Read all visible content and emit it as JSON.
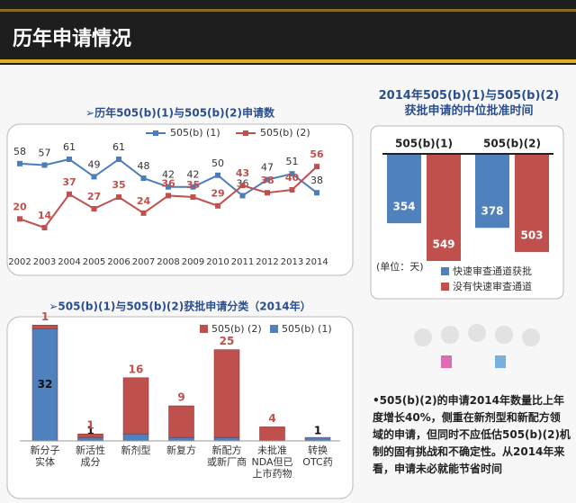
{
  "header": {
    "title": "历年申请情况"
  },
  "chart_data": [
    {
      "type": "line",
      "title": "➢历年505(b)(1)与505(b)(2)申请数",
      "categories": [
        "2002",
        "2003",
        "2004",
        "2005",
        "2006",
        "2007",
        "2008",
        "2009",
        "2010",
        "2011",
        "2012",
        "2013",
        "2014"
      ],
      "series": [
        {
          "name": "505(b) (1)",
          "color": "#4a7ebb",
          "values": [
            58,
            57,
            61,
            49,
            61,
            48,
            42,
            42,
            50,
            36,
            47,
            51,
            38
          ]
        },
        {
          "name": "505(b) (2)",
          "color": "#c0504d",
          "values": [
            20,
            14,
            37,
            27,
            35,
            24,
            36,
            35,
            29,
            43,
            38,
            40,
            56
          ]
        }
      ]
    },
    {
      "type": "bar",
      "title": "2014年505(b)(1)与505(b)(2)\n获批申请的中位批准时间",
      "categories": [
        "505(b)(1)",
        "505(b)(2)"
      ],
      "series": [
        {
          "name": "快速审查通道获批",
          "color": "#4f81bd",
          "values": [
            354,
            378
          ]
        },
        {
          "name": "没有快速审查通道",
          "color": "#c0504d",
          "values": [
            549,
            503
          ]
        }
      ],
      "note": "(单位：天)"
    },
    {
      "type": "stacked_bar",
      "title": "➢505(b)(1)与505(b)(2)获批申请分类（2014年）",
      "categories": [
        "新分子\n实体",
        "新活性\n成分",
        "新剂型",
        "新复方",
        "新配方\n或新厂商",
        "未批准\nNDA但已\n上市药物",
        "转换\nOTC药"
      ],
      "series": [
        {
          "name": "505(b) (2)",
          "color": "#c0504d",
          "values": [
            1,
            1,
            16,
            9,
            25,
            4,
            null
          ]
        },
        {
          "name": "505(b) (1)",
          "color": "#4f81bd",
          "values": [
            32,
            1,
            2,
            1,
            1,
            null,
            1
          ]
        }
      ]
    }
  ],
  "text": {
    "bullet": "•505(b)(2)的申请2014年数量比上年度增长40%，侧重在新剂型和新配方领域的申请，但同时不应低估505(b)(2)机制的固有挑战和不确定性。从2014年来看，申请未必就能节省时间"
  }
}
